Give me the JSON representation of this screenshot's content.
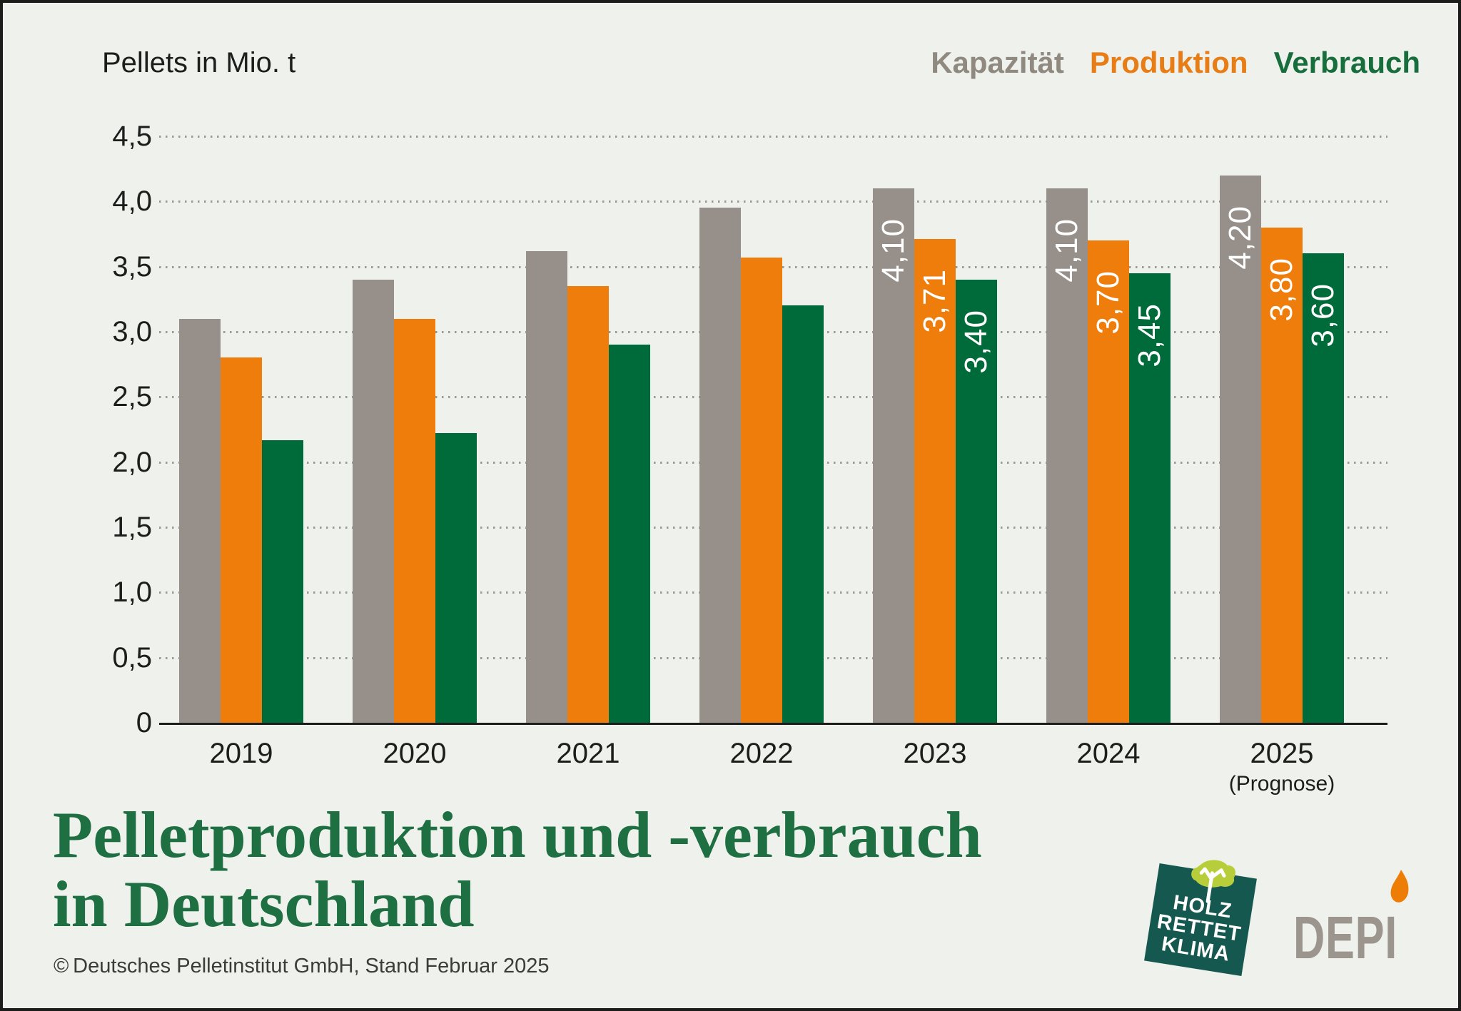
{
  "header": {
    "axis_title": "Pellets in Mio. t"
  },
  "legend": {
    "items": [
      {
        "label": "Kapazität",
        "color": "#8f897f"
      },
      {
        "label": "Produktion",
        "color": "#e87d15"
      },
      {
        "label": "Verbrauch",
        "color": "#176e3c"
      }
    ]
  },
  "chart_data": {
    "type": "bar",
    "title": "Pelletproduktion und -verbrauch in Deutschland",
    "unit": "Mio. t",
    "ylabel": "Pellets in Mio. t",
    "xlabel": "",
    "ylim": [
      0,
      4.5
    ],
    "grid": "dotted horizontal gridlines every 0.5",
    "legend_position": "top-right",
    "yticks": [
      "4,5",
      "4,0",
      "3,5",
      "3,0",
      "2,5",
      "2,0",
      "1,5",
      "1,0",
      "0,5",
      "0"
    ],
    "categories": [
      "2019",
      "2020",
      "2021",
      "2022",
      "2023",
      "2024",
      "2025"
    ],
    "category_notes": [
      null,
      null,
      null,
      null,
      null,
      null,
      "(Prognose)"
    ],
    "series": [
      {
        "name": "Kapazität",
        "key": "kapazitaet",
        "color": "#97908a",
        "values": [
          3.1,
          3.4,
          3.62,
          3.95,
          4.1,
          4.1,
          4.2
        ],
        "bar_labels": [
          null,
          null,
          null,
          null,
          "4,10",
          "4,10",
          "4,20"
        ]
      },
      {
        "name": "Produktion",
        "key": "produktion",
        "color": "#ee7d0c",
        "values": [
          2.8,
          3.1,
          3.35,
          3.57,
          3.71,
          3.7,
          3.8
        ],
        "bar_labels": [
          null,
          null,
          null,
          null,
          "3,71",
          "3,70",
          "3,80"
        ]
      },
      {
        "name": "Verbrauch",
        "key": "verbrauch",
        "color": "#006b3a",
        "values": [
          2.17,
          2.22,
          2.9,
          3.2,
          3.4,
          3.45,
          3.6
        ],
        "bar_labels": [
          null,
          null,
          null,
          null,
          "3,40",
          "3,45",
          "3,60"
        ]
      }
    ],
    "value_label_color": "#ffffff",
    "value_label_rotation": "vertical, reading bottom to top"
  },
  "title": {
    "line1": "Pelletproduktion und -verbrauch",
    "line2": "in Deutschland"
  },
  "footer": {
    "copyright": "© Deutsches Pelletinstitut GmbH, Stand Februar 2025"
  },
  "logos": {
    "holz_rettet_klima": {
      "lines": [
        "HOLZ",
        "RETTET",
        "KLIMA"
      ],
      "box_color": "#15584f",
      "tree_color": "#b8cd3a"
    },
    "depi": {
      "text": "DEPI",
      "text_color": "#9b958d",
      "flame_color": "#ee7d05"
    }
  }
}
